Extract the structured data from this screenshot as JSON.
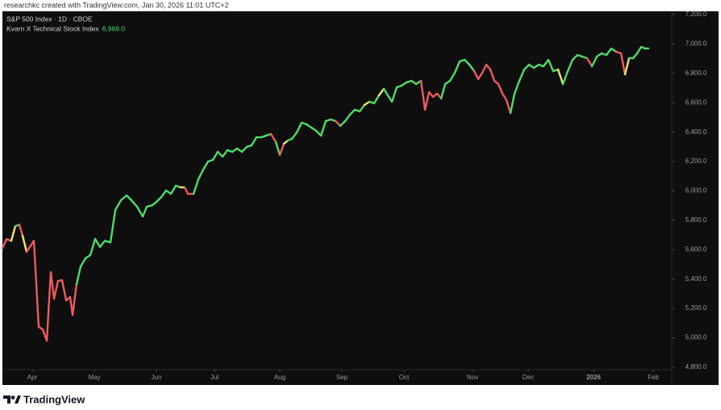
{
  "header": "researchkc created with TradingView.com, Jan 30, 2026 11:01 UTC+2",
  "brand": "TradingView",
  "chart_data": {
    "type": "line",
    "title": "S&P 500 Index · 1D · CBOE",
    "grid": false,
    "log_scale": false,
    "background": "#0e0e0e",
    "xlim": [
      3,
      832
    ],
    "xticks": [
      {
        "value": 40,
        "label": "Apr"
      },
      {
        "value": 117,
        "label": "May"
      },
      {
        "value": 194,
        "label": "Jun"
      },
      {
        "value": 266,
        "label": "Jul"
      },
      {
        "value": 347,
        "label": "Aug"
      },
      {
        "value": 424,
        "label": "Sep"
      },
      {
        "value": 501,
        "label": "Oct"
      },
      {
        "value": 586,
        "label": "Nov"
      },
      {
        "value": 655,
        "label": "Dec"
      },
      {
        "value": 736,
        "label": "2026"
      },
      {
        "value": 810,
        "label": "Feb"
      }
    ],
    "ylim": [
      4780,
      7220
    ],
    "yticks": [
      {
        "value": 4800,
        "label": "4,800.0"
      },
      {
        "value": 5000,
        "label": "5,000.0"
      },
      {
        "value": 5200,
        "label": "5,200.0"
      },
      {
        "value": 5400,
        "label": "5,400.0"
      },
      {
        "value": 5600,
        "label": "5,600.0"
      },
      {
        "value": 5800,
        "label": "5,800.0"
      },
      {
        "value": 6000,
        "label": "6,000.0"
      },
      {
        "value": 6200,
        "label": "6,200.0"
      },
      {
        "value": 6400,
        "label": "6,400.0"
      },
      {
        "value": 6600,
        "label": "6,600.0"
      },
      {
        "value": 6800,
        "label": "6,800.0"
      },
      {
        "value": 7000,
        "label": "7,000.0"
      },
      {
        "value": 7200,
        "label": "7,200.0"
      }
    ],
    "x": [
      3,
      8,
      14,
      19,
      24,
      28,
      33,
      42,
      48,
      53,
      58,
      63,
      67,
      72,
      77,
      82,
      87,
      90,
      95,
      100,
      106,
      112,
      118,
      124,
      130,
      137,
      143,
      150,
      157,
      163,
      170,
      177,
      182,
      189,
      194,
      200,
      206,
      212,
      218,
      224,
      229,
      233,
      240,
      246,
      252,
      258,
      264,
      270,
      276,
      282,
      288,
      294,
      300,
      306,
      312,
      318,
      324,
      330,
      336,
      342,
      347,
      352,
      357,
      362,
      368,
      374,
      380,
      386,
      392,
      398,
      404,
      410,
      416,
      422,
      428,
      434,
      440,
      446,
      452,
      458,
      464,
      470,
      476,
      482,
      486,
      492,
      498,
      504,
      510,
      516,
      522,
      527,
      532,
      537,
      542,
      547,
      552,
      558,
      564,
      570,
      576,
      582,
      588,
      593,
      598,
      603,
      608,
      613,
      618,
      623,
      628,
      633,
      638,
      644,
      650,
      656,
      662,
      668,
      674,
      680,
      686,
      692,
      698,
      704,
      710,
      716,
      722,
      728,
      734,
      740,
      746,
      752,
      758,
      764,
      770,
      775,
      780,
      785,
      790,
      795,
      800,
      804
    ],
    "series": [
      {
        "name": "Kvarn X Technical Stock Index",
        "current_value": 6969,
        "current_value_label": "6,969.0",
        "label_color": "#4fdc6a",
        "values": [
          5610,
          5672,
          5660,
          5760,
          5770,
          5695,
          5585,
          5660,
          5074,
          5057,
          4980,
          5447,
          5266,
          5387,
          5392,
          5255,
          5277,
          5156,
          5365,
          5486,
          5541,
          5563,
          5673,
          5618,
          5660,
          5650,
          5870,
          5936,
          5969,
          5936,
          5892,
          5826,
          5892,
          5903,
          5925,
          5958,
          6002,
          5980,
          6035,
          6024,
          6024,
          5980,
          5980,
          6079,
          6145,
          6200,
          6211,
          6266,
          6233,
          6277,
          6266,
          6288,
          6266,
          6299,
          6310,
          6365,
          6365,
          6376,
          6387,
          6332,
          6244,
          6321,
          6343,
          6354,
          6398,
          6464,
          6453,
          6431,
          6409,
          6376,
          6475,
          6486,
          6475,
          6442,
          6475,
          6519,
          6552,
          6541,
          6585,
          6607,
          6596,
          6651,
          6695,
          6640,
          6607,
          6705,
          6716,
          6738,
          6749,
          6727,
          6749,
          6552,
          6672,
          6640,
          6662,
          6629,
          6727,
          6749,
          6804,
          6881,
          6892,
          6859,
          6815,
          6760,
          6804,
          6859,
          6826,
          6749,
          6727,
          6662,
          6618,
          6530,
          6662,
          6749,
          6826,
          6859,
          6837,
          6859,
          6848,
          6892,
          6815,
          6826,
          6727,
          6815,
          6892,
          6925,
          6914,
          6903,
          6848,
          6914,
          6936,
          6925,
          6969,
          6947,
          6936,
          6793,
          6903,
          6903,
          6936,
          6980,
          6969,
          6969
        ],
        "colors": [
          "#ef5a5f",
          "#ef5a5f",
          "#ef5a5f",
          "#f2e66b",
          "#4fdc6a",
          "#ef5a5f",
          "#f2e66b",
          "#ef5a5f",
          "#ef5a5f",
          "#ef5a5f",
          "#ef5a5f",
          "#ef5a5f",
          "#ef5a5f",
          "#ef5a5f",
          "#ef5a5f",
          "#ef5a5f",
          "#ef5a5f",
          "#ef5a5f",
          "#ef5a5f",
          "#4fdc6a",
          "#4fdc6a",
          "#4fdc6a",
          "#4fdc6a",
          "#4fdc6a",
          "#4fdc6a",
          "#4fdc6a",
          "#4fdc6a",
          "#4fdc6a",
          "#4fdc6a",
          "#4fdc6a",
          "#4fdc6a",
          "#4fdc6a",
          "#4fdc6a",
          "#4fdc6a",
          "#4fdc6a",
          "#4fdc6a",
          "#4fdc6a",
          "#4fdc6a",
          "#4fdc6a",
          "#4fdc6a",
          "#f2e66b",
          "#ef5a5f",
          "#ef5a5f",
          "#4fdc6a",
          "#4fdc6a",
          "#4fdc6a",
          "#4fdc6a",
          "#4fdc6a",
          "#4fdc6a",
          "#4fdc6a",
          "#4fdc6a",
          "#4fdc6a",
          "#4fdc6a",
          "#4fdc6a",
          "#4fdc6a",
          "#4fdc6a",
          "#4fdc6a",
          "#4fdc6a",
          "#4fdc6a",
          "#ef5a5f",
          "#4fdc6a",
          "#ef5a5f",
          "#f2e66b",
          "#4fdc6a",
          "#4fdc6a",
          "#4fdc6a",
          "#4fdc6a",
          "#4fdc6a",
          "#4fdc6a",
          "#4fdc6a",
          "#4fdc6a",
          "#4fdc6a",
          "#4fdc6a",
          "#ef5a5f",
          "#4fdc6a",
          "#4fdc6a",
          "#4fdc6a",
          "#4fdc6a",
          "#4fdc6a",
          "#f2e66b",
          "#4fdc6a",
          "#4fdc6a",
          "#f2e66b",
          "#4fdc6a",
          "#4fdc6a",
          "#4fdc6a",
          "#4fdc6a",
          "#4fdc6a",
          "#4fdc6a",
          "#4fdc6a",
          "#4fdc6a",
          "#ef5a5f",
          "#ef5a5f",
          "#ef5a5f",
          "#ef5a5f",
          "#ef5a5f",
          "#4fdc6a",
          "#4fdc6a",
          "#4fdc6a",
          "#4fdc6a",
          "#4fdc6a",
          "#4fdc6a",
          "#4fdc6a",
          "#ef5a5f",
          "#ef5a5f",
          "#ef5a5f",
          "#ef5a5f",
          "#ef5a5f",
          "#ef5a5f",
          "#ef5a5f",
          "#ef5a5f",
          "#ef5a5f",
          "#4fdc6a",
          "#4fdc6a",
          "#4fdc6a",
          "#4fdc6a",
          "#4fdc6a",
          "#4fdc6a",
          "#4fdc6a",
          "#4fdc6a",
          "#4fdc6a",
          "#4fdc6a",
          "#f2e66b",
          "#4fdc6a",
          "#4fdc6a",
          "#4fdc6a",
          "#4fdc6a",
          "#4fdc6a",
          "#ef5a5f",
          "#4fdc6a",
          "#4fdc6a",
          "#4fdc6a",
          "#4fdc6a",
          "#4fdc6a",
          "#ef5a5f",
          "#ef5a5f",
          "#f2e66b",
          "#4fdc6a",
          "#4fdc6a",
          "#4fdc6a",
          "#4fdc6a",
          "#4fdc6a"
        ]
      }
    ]
  }
}
